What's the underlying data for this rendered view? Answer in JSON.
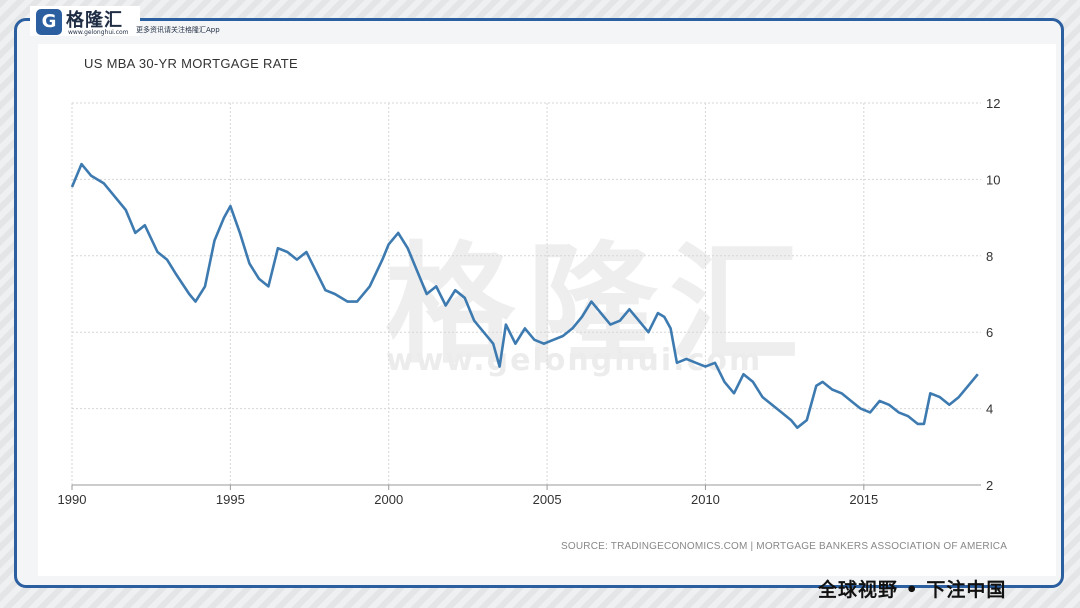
{
  "brand": {
    "logo_letter": "G",
    "name": "格隆汇",
    "site": "www.gelonghui.com",
    "tagline": "更多资讯请关注格隆汇App",
    "slogan": "全球视野 • 下注中国"
  },
  "watermark": {
    "text": "格隆汇",
    "site": "www.gelonghui.com"
  },
  "chart_data": {
    "type": "line",
    "title": "US MBA 30-YR MORTGAGE RATE",
    "source": "SOURCE: TRADINGECONOMICS.COM | MORTGAGE BANKERS ASSOCIATION OF AMERICA",
    "xlabel": "",
    "ylabel": "",
    "xlim": [
      1990,
      2018.7
    ],
    "ylim": [
      2,
      12
    ],
    "x_ticks": [
      "1990",
      "1995",
      "2000",
      "2005",
      "2010",
      "2015"
    ],
    "y_ticks": [
      "2",
      "4",
      "6",
      "8",
      "10",
      "12"
    ],
    "grid": true,
    "series_color": "#3d7ab0",
    "series": [
      {
        "x": [
          1990.0,
          1990.3,
          1990.6,
          1991.0,
          1991.3,
          1991.7,
          1992.0,
          1992.3,
          1992.7,
          1993.0,
          1993.3,
          1993.7,
          1993.9,
          1994.2,
          1994.5,
          1994.8,
          1995.0,
          1995.3,
          1995.6,
          1995.9,
          1996.2,
          1996.5,
          1996.8,
          1997.1,
          1997.4,
          1997.7,
          1998.0,
          1998.3,
          1998.7,
          1999.0,
          1999.4,
          1999.8,
          2000.0,
          2000.3,
          2000.6,
          2000.9,
          2001.2,
          2001.5,
          2001.8,
          2002.1,
          2002.4,
          2002.7,
          2003.0,
          2003.3,
          2003.5,
          2003.7,
          2004.0,
          2004.3,
          2004.6,
          2004.9,
          2005.2,
          2005.5,
          2005.8,
          2006.1,
          2006.4,
          2006.7,
          2007.0,
          2007.3,
          2007.6,
          2007.9,
          2008.2,
          2008.5,
          2008.7,
          2008.9,
          2009.1,
          2009.4,
          2009.7,
          2010.0,
          2010.3,
          2010.6,
          2010.9,
          2011.2,
          2011.5,
          2011.8,
          2012.1,
          2012.4,
          2012.7,
          2012.9,
          2013.2,
          2013.5,
          2013.7,
          2014.0,
          2014.3,
          2014.6,
          2014.9,
          2015.2,
          2015.5,
          2015.8,
          2016.1,
          2016.4,
          2016.7,
          2016.9,
          2017.1,
          2017.4,
          2017.7,
          2018.0,
          2018.3,
          2018.6
        ],
        "values": [
          9.8,
          10.4,
          10.1,
          9.9,
          9.6,
          9.2,
          8.6,
          8.8,
          8.1,
          7.9,
          7.5,
          7.0,
          6.8,
          7.2,
          8.4,
          9.0,
          9.3,
          8.6,
          7.8,
          7.4,
          7.2,
          8.2,
          8.1,
          7.9,
          8.1,
          7.6,
          7.1,
          7.0,
          6.8,
          6.8,
          7.2,
          7.9,
          8.3,
          8.6,
          8.2,
          7.6,
          7.0,
          7.2,
          6.7,
          7.1,
          6.9,
          6.3,
          6.0,
          5.7,
          5.1,
          6.2,
          5.7,
          6.1,
          5.8,
          5.7,
          5.8,
          5.9,
          6.1,
          6.4,
          6.8,
          6.5,
          6.2,
          6.3,
          6.6,
          6.3,
          6.0,
          6.5,
          6.4,
          6.1,
          5.2,
          5.3,
          5.2,
          5.1,
          5.2,
          4.7,
          4.4,
          4.9,
          4.7,
          4.3,
          4.1,
          3.9,
          3.7,
          3.5,
          3.7,
          4.6,
          4.7,
          4.5,
          4.4,
          4.2,
          4.0,
          3.9,
          4.2,
          4.1,
          3.9,
          3.8,
          3.6,
          3.6,
          4.4,
          4.3,
          4.1,
          4.3,
          4.6,
          4.9
        ]
      }
    ]
  }
}
